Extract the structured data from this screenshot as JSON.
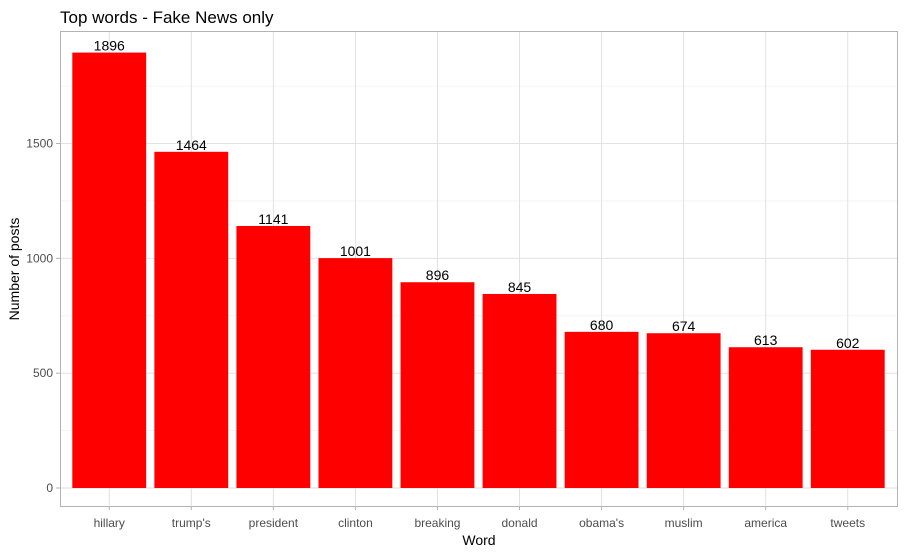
{
  "chart_data": {
    "type": "bar",
    "title": "Top words - Fake News only",
    "xlabel": "Word",
    "ylabel": "Number of posts",
    "categories": [
      "hillary",
      "trump's",
      "president",
      "clinton",
      "breaking",
      "donald",
      "obama's",
      "muslim",
      "america",
      "tweets"
    ],
    "values": [
      1896,
      1464,
      1141,
      1001,
      896,
      845,
      680,
      674,
      613,
      602
    ],
    "ylim": [
      0,
      1990
    ],
    "yticks": [
      0,
      500,
      1000,
      1500
    ],
    "bar_color": "#ff0000",
    "grid": true,
    "legend": "none"
  }
}
